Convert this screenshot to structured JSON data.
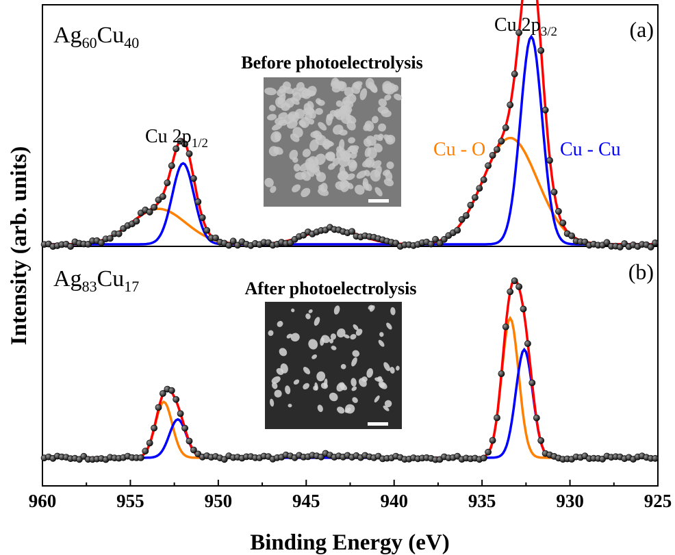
{
  "chart_data": {
    "type": "line",
    "x_axis": {
      "label": "Binding Energy (eV)",
      "range": [
        960,
        925
      ],
      "reversed": true,
      "ticks": [
        960,
        955,
        950,
        945,
        940,
        935,
        930,
        925
      ],
      "tick_labels": [
        "960",
        "955",
        "950",
        "945",
        "940",
        "935",
        "930",
        "925"
      ]
    },
    "y_axis": {
      "label": "Intensity (arb. units)",
      "ticks": []
    },
    "grid": false,
    "panels": [
      {
        "id": "a",
        "tag": "(a)",
        "composition": {
          "el1": "Ag",
          "sub1": "60",
          "el2": "Cu",
          "sub2": "40"
        },
        "inset_title": "Before photoelectrolysis",
        "peak_labels": {
          "cu2p12": {
            "main": "Cu 2p",
            "sub": "1/2"
          },
          "cu2p32": {
            "main": "Cu 2p",
            "sub": "3/2"
          },
          "cu_o": "Cu - O",
          "cu_cu": "Cu - Cu"
        },
        "background": 0.0,
        "satellite": {
          "center": 943.5,
          "amp": 0.06,
          "sigma": 1.5
        },
        "series": [
          {
            "label_ref": "cu_o",
            "color": "#ff8000",
            "components": [
              {
                "center": 933.4,
                "amp": 0.42,
                "sigma": 1.55
              },
              {
                "center": 953.4,
                "amp": 0.14,
                "sigma": 1.55
              }
            ]
          },
          {
            "label_ref": "cu_cu",
            "color": "#0000ff",
            "components": [
              {
                "center": 932.2,
                "amp": 0.82,
                "sigma": 0.62
              },
              {
                "center": 952.0,
                "amp": 0.32,
                "sigma": 0.62
              }
            ]
          }
        ]
      },
      {
        "id": "b",
        "tag": "(b)",
        "composition": {
          "el1": "Ag",
          "sub1": "83",
          "el2": "Cu",
          "sub2": "17"
        },
        "inset_title": "After photoelectrolysis",
        "background": 0.02,
        "satellite": {
          "center": 944.0,
          "amp": 0.015,
          "sigma": 1.5
        },
        "series": [
          {
            "color": "#ff8000",
            "components": [
              {
                "center": 933.4,
                "amp": 0.8,
                "sigma": 0.48
              },
              {
                "center": 953.1,
                "amp": 0.32,
                "sigma": 0.48
              }
            ]
          },
          {
            "color": "#0000ff",
            "components": [
              {
                "center": 932.6,
                "amp": 0.62,
                "sigma": 0.48
              },
              {
                "center": 952.3,
                "amp": 0.22,
                "sigma": 0.48
              }
            ]
          }
        ]
      }
    ]
  },
  "colors": {
    "envelope": "#ff0000",
    "data_marker": "#1a1a1a",
    "frame": "#000000"
  }
}
